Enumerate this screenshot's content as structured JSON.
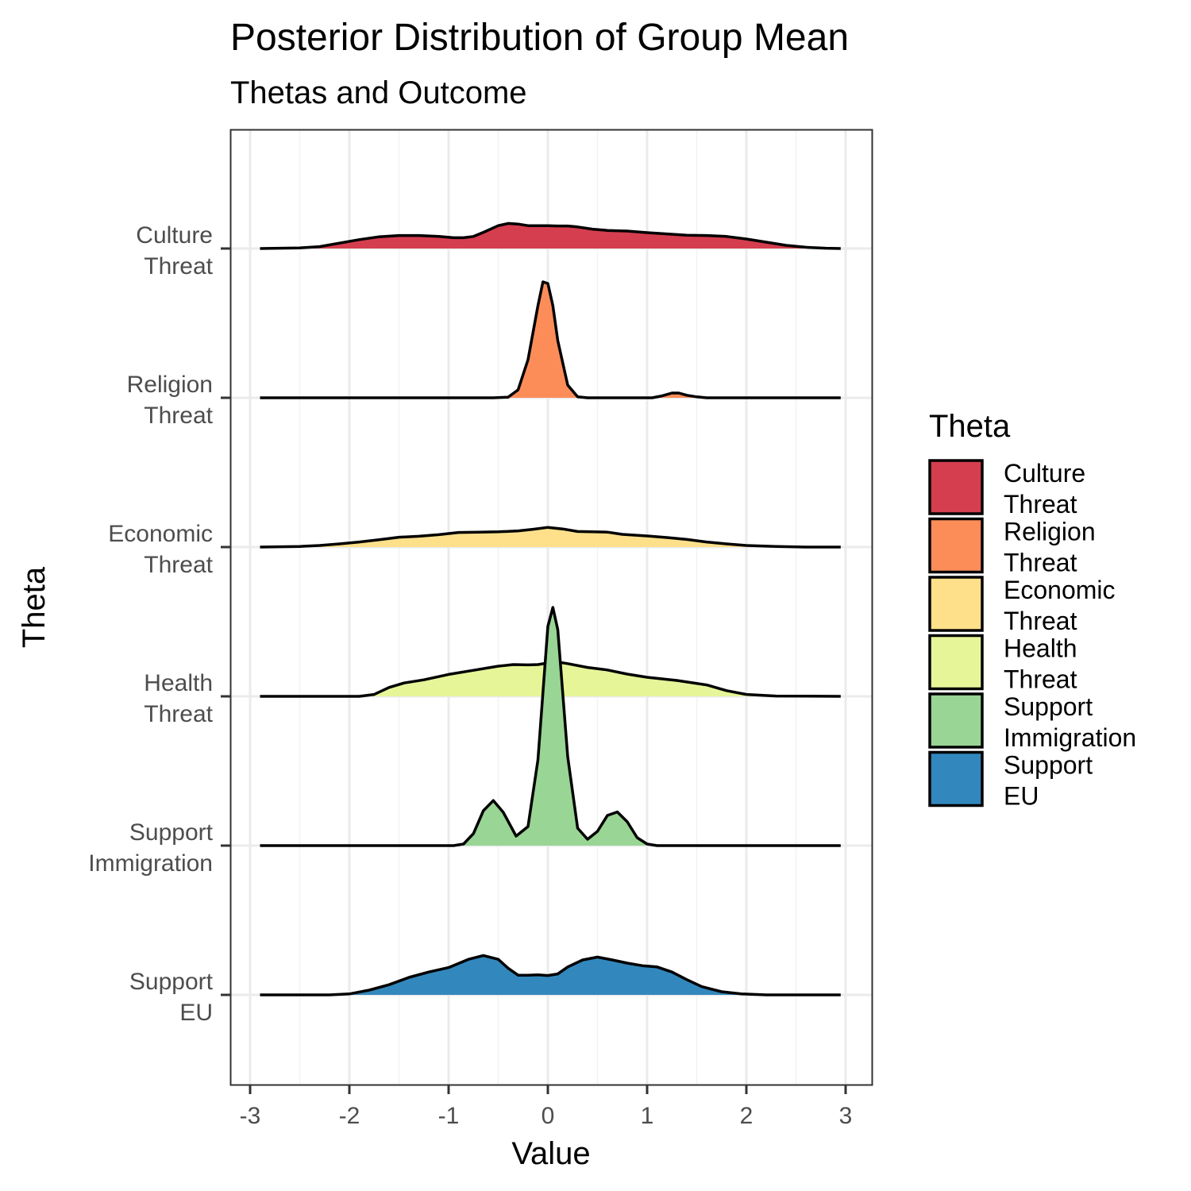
{
  "chart_data": {
    "type": "ridgeline",
    "title": "Posterior Distribution of Group Mean",
    "subtitle": "Thetas and Outcome",
    "xlabel": "Value",
    "ylabel": "Theta",
    "xlim": [
      -3.2,
      3.2
    ],
    "x_ticks": [
      "-3",
      "-2",
      "-1",
      "0",
      "1",
      "2",
      "3"
    ],
    "grid": true,
    "legend": {
      "title": "Theta",
      "position": "right",
      "entries": [
        {
          "label_line1": "Culture",
          "label_line2": "Threat",
          "color": "#D53E4F"
        },
        {
          "label_line1": "Religion",
          "label_line2": "Threat",
          "color": "#FC8D59"
        },
        {
          "label_line1": "Economic",
          "label_line2": "Threat",
          "color": "#FEE08B"
        },
        {
          "label_line1": "Health",
          "label_line2": "Threat",
          "color": "#E6F598"
        },
        {
          "label_line1": "Support",
          "label_line2": "Immigration",
          "color": "#99D594"
        },
        {
          "label_line1": "Support",
          "label_line2": "EU",
          "color": "#3288BD"
        }
      ]
    },
    "series": [
      {
        "name": "Culture Threat",
        "label_line1": "Culture",
        "label_line2": "Threat",
        "color": "#D53E4F",
        "points": [
          [
            -2.9,
            0.0
          ],
          [
            -2.5,
            0.02
          ],
          [
            -2.3,
            0.06
          ],
          [
            -2.1,
            0.17
          ],
          [
            -1.9,
            0.28
          ],
          [
            -1.7,
            0.37
          ],
          [
            -1.5,
            0.41
          ],
          [
            -1.3,
            0.41
          ],
          [
            -1.1,
            0.38
          ],
          [
            -0.95,
            0.34
          ],
          [
            -0.85,
            0.34
          ],
          [
            -0.75,
            0.38
          ],
          [
            -0.65,
            0.51
          ],
          [
            -0.5,
            0.72
          ],
          [
            -0.4,
            0.79
          ],
          [
            -0.3,
            0.77
          ],
          [
            -0.2,
            0.72
          ],
          [
            -0.1,
            0.72
          ],
          [
            0.0,
            0.72
          ],
          [
            0.1,
            0.71
          ],
          [
            0.2,
            0.71
          ],
          [
            0.3,
            0.68
          ],
          [
            0.45,
            0.61
          ],
          [
            0.6,
            0.57
          ],
          [
            0.8,
            0.55
          ],
          [
            1.0,
            0.5
          ],
          [
            1.2,
            0.46
          ],
          [
            1.4,
            0.42
          ],
          [
            1.6,
            0.41
          ],
          [
            1.8,
            0.38
          ],
          [
            2.0,
            0.3
          ],
          [
            2.2,
            0.2
          ],
          [
            2.4,
            0.1
          ],
          [
            2.6,
            0.04
          ],
          [
            2.8,
            0.01
          ],
          [
            2.95,
            0.0
          ]
        ]
      },
      {
        "name": "Religion Threat",
        "label_line1": "Religion",
        "label_line2": "Threat",
        "color": "#FC8D59",
        "points": [
          [
            -2.9,
            0.0
          ],
          [
            -0.55,
            0.0
          ],
          [
            -0.4,
            0.02
          ],
          [
            -0.3,
            0.25
          ],
          [
            -0.2,
            1.2
          ],
          [
            -0.1,
            2.9
          ],
          [
            -0.05,
            3.65
          ],
          [
            0.0,
            3.6
          ],
          [
            0.05,
            2.9
          ],
          [
            0.1,
            1.8
          ],
          [
            0.2,
            0.4
          ],
          [
            0.3,
            0.03
          ],
          [
            0.4,
            0.0
          ],
          [
            1.05,
            0.0
          ],
          [
            1.15,
            0.06
          ],
          [
            1.25,
            0.15
          ],
          [
            1.32,
            0.15
          ],
          [
            1.4,
            0.08
          ],
          [
            1.5,
            0.03
          ],
          [
            1.6,
            0.0
          ],
          [
            2.95,
            0.0
          ]
        ]
      },
      {
        "name": "Economic Threat",
        "label_line1": "Economic",
        "label_line2": "Threat",
        "color": "#FEE08B",
        "points": [
          [
            -2.9,
            0.0
          ],
          [
            -2.5,
            0.02
          ],
          [
            -2.3,
            0.05
          ],
          [
            -2.1,
            0.1
          ],
          [
            -1.9,
            0.16
          ],
          [
            -1.7,
            0.23
          ],
          [
            -1.5,
            0.31
          ],
          [
            -1.3,
            0.34
          ],
          [
            -1.1,
            0.39
          ],
          [
            -0.9,
            0.46
          ],
          [
            -0.7,
            0.47
          ],
          [
            -0.5,
            0.48
          ],
          [
            -0.3,
            0.51
          ],
          [
            -0.15,
            0.56
          ],
          [
            0.0,
            0.62
          ],
          [
            0.15,
            0.57
          ],
          [
            0.3,
            0.49
          ],
          [
            0.45,
            0.48
          ],
          [
            0.6,
            0.47
          ],
          [
            0.75,
            0.4
          ],
          [
            1.0,
            0.35
          ],
          [
            1.2,
            0.3
          ],
          [
            1.4,
            0.24
          ],
          [
            1.6,
            0.16
          ],
          [
            1.8,
            0.1
          ],
          [
            2.0,
            0.05
          ],
          [
            2.3,
            0.02
          ],
          [
            2.6,
            0.0
          ],
          [
            2.95,
            0.0
          ]
        ]
      },
      {
        "name": "Health Threat",
        "label_line1": "Health",
        "label_line2": "Threat",
        "color": "#E6F598",
        "points": [
          [
            -2.9,
            0.0
          ],
          [
            -1.9,
            0.0
          ],
          [
            -1.75,
            0.06
          ],
          [
            -1.6,
            0.28
          ],
          [
            -1.45,
            0.42
          ],
          [
            -1.25,
            0.52
          ],
          [
            -1.0,
            0.69
          ],
          [
            -0.75,
            0.82
          ],
          [
            -0.5,
            0.95
          ],
          [
            -0.35,
            1.0
          ],
          [
            -0.2,
            0.99
          ],
          [
            -0.1,
            1.0
          ],
          [
            0.0,
            1.05
          ],
          [
            0.1,
            1.08
          ],
          [
            0.2,
            1.03
          ],
          [
            0.4,
            0.91
          ],
          [
            0.6,
            0.83
          ],
          [
            0.8,
            0.7
          ],
          [
            1.0,
            0.6
          ],
          [
            1.3,
            0.5
          ],
          [
            1.6,
            0.36
          ],
          [
            1.8,
            0.18
          ],
          [
            2.0,
            0.06
          ],
          [
            2.3,
            0.01
          ],
          [
            2.95,
            0.0
          ]
        ]
      },
      {
        "name": "Support Immigration",
        "label_line1": "Support",
        "label_line2": "Immigration",
        "color": "#99D594",
        "points": [
          [
            -2.9,
            0.0
          ],
          [
            -0.95,
            0.0
          ],
          [
            -0.85,
            0.05
          ],
          [
            -0.75,
            0.38
          ],
          [
            -0.65,
            1.1
          ],
          [
            -0.55,
            1.42
          ],
          [
            -0.45,
            1.05
          ],
          [
            -0.32,
            0.3
          ],
          [
            -0.2,
            0.6
          ],
          [
            -0.1,
            2.7
          ],
          [
            0.0,
            6.9
          ],
          [
            0.05,
            7.5
          ],
          [
            0.1,
            6.8
          ],
          [
            0.2,
            2.8
          ],
          [
            0.3,
            0.55
          ],
          [
            0.4,
            0.2
          ],
          [
            0.5,
            0.45
          ],
          [
            0.6,
            0.95
          ],
          [
            0.7,
            1.06
          ],
          [
            0.8,
            0.75
          ],
          [
            0.9,
            0.25
          ],
          [
            1.0,
            0.05
          ],
          [
            1.1,
            0.0
          ],
          [
            2.95,
            0.0
          ]
        ]
      },
      {
        "name": "Support EU",
        "label_line1": "Support",
        "label_line2": "EU",
        "color": "#3288BD",
        "points": [
          [
            -2.9,
            0.0
          ],
          [
            -2.2,
            0.0
          ],
          [
            -2.0,
            0.03
          ],
          [
            -1.8,
            0.15
          ],
          [
            -1.6,
            0.32
          ],
          [
            -1.4,
            0.55
          ],
          [
            -1.2,
            0.72
          ],
          [
            -1.0,
            0.86
          ],
          [
            -0.8,
            1.12
          ],
          [
            -0.65,
            1.24
          ],
          [
            -0.5,
            1.12
          ],
          [
            -0.4,
            0.84
          ],
          [
            -0.3,
            0.62
          ],
          [
            -0.2,
            0.62
          ],
          [
            -0.1,
            0.63
          ],
          [
            0.0,
            0.61
          ],
          [
            0.1,
            0.66
          ],
          [
            0.2,
            0.88
          ],
          [
            0.35,
            1.1
          ],
          [
            0.5,
            1.19
          ],
          [
            0.65,
            1.1
          ],
          [
            0.8,
            1.0
          ],
          [
            0.95,
            0.92
          ],
          [
            1.1,
            0.88
          ],
          [
            1.25,
            0.72
          ],
          [
            1.4,
            0.48
          ],
          [
            1.55,
            0.26
          ],
          [
            1.75,
            0.1
          ],
          [
            1.95,
            0.03
          ],
          [
            2.2,
            0.0
          ],
          [
            2.95,
            0.0
          ]
        ]
      }
    ]
  }
}
